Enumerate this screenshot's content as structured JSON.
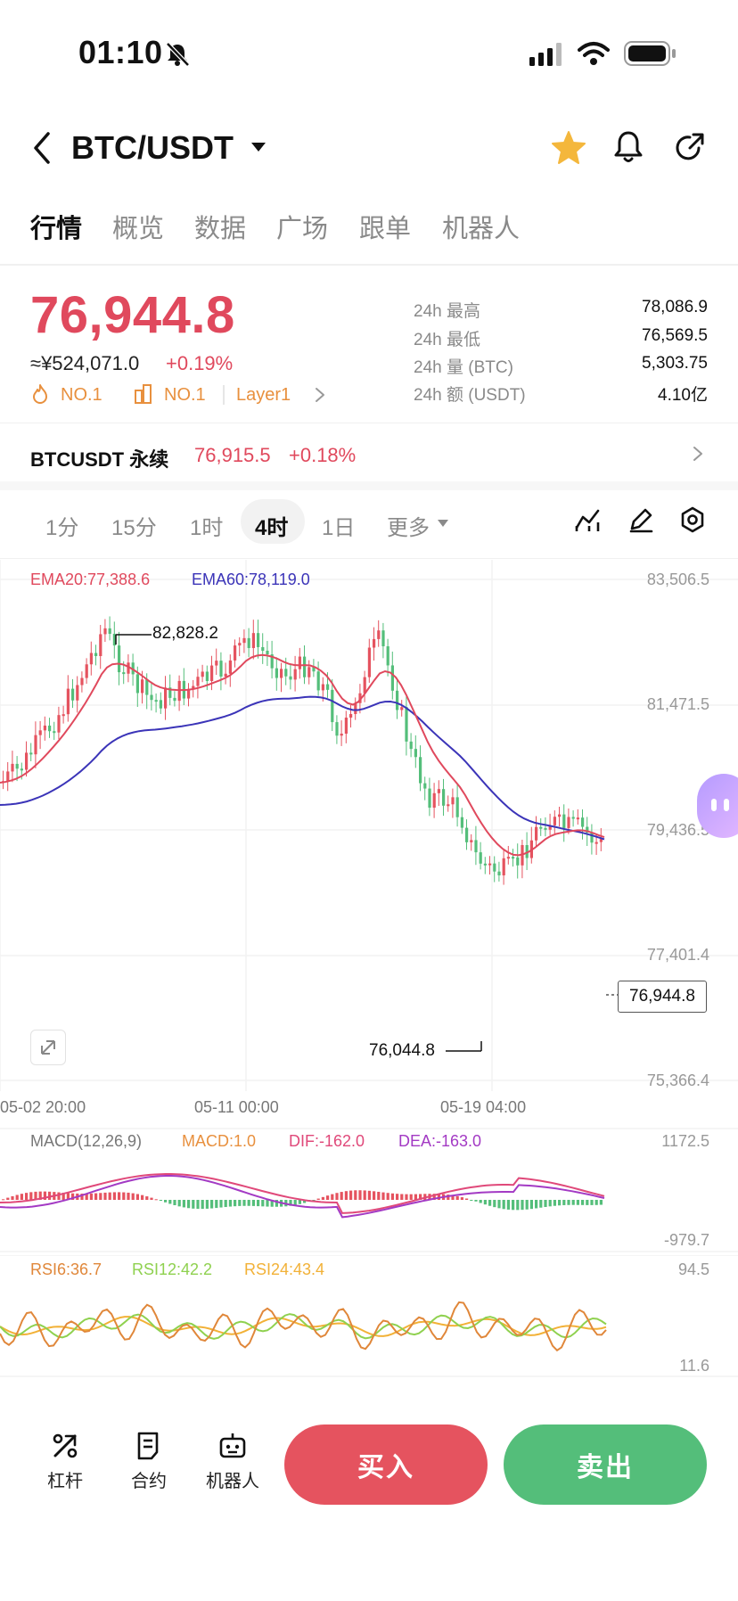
{
  "status_bar": {
    "time": "01:10"
  },
  "header": {
    "pair": "BTC/USDT"
  },
  "tabs": [
    "行情",
    "概览",
    "数据",
    "广场",
    "跟单",
    "机器人"
  ],
  "ticker": {
    "last_price": "76,944.8",
    "cny_price": "≈¥524,071.0",
    "change_pct": "+0.19%",
    "rank_hot": "NO.1",
    "rank_sector": "NO.1",
    "sector": "Layer1"
  },
  "stats": [
    {
      "label": "24h  最高",
      "value": "78,086.9"
    },
    {
      "label": "24h  最低",
      "value": "76,569.5"
    },
    {
      "label": "24h  量 (BTC)",
      "value": "5,303.75"
    },
    {
      "label": "24h  额 (USDT)",
      "value": "4.10亿"
    }
  ],
  "perpetual": {
    "name": "BTCUSDT 永续",
    "price": "76,915.5",
    "change": "+0.18%"
  },
  "intervals": [
    "1分",
    "15分",
    "1时",
    "4时",
    "1日",
    "更多"
  ],
  "chart": {
    "ema20": "EMA20:77,388.6",
    "ema60": "EMA60:78,119.0",
    "y_ticks": [
      "83,506.5",
      "81,471.5",
      "79,436.5",
      "77,401.4",
      "75,366.4"
    ],
    "x_ticks": [
      "05-02 20:00",
      "05-11 00:00",
      "05-19 04:00"
    ],
    "high_mark": "82,828.2",
    "low_mark": "76,044.8",
    "current_price_tag": "76,944.8",
    "colors": {
      "up": "#e5535f",
      "down": "#54be7a",
      "ema20": "#e0495d",
      "ema60": "#3b34b8"
    }
  },
  "macd": {
    "title": "MACD(12,26,9)",
    "macd": "MACD:1.0",
    "dif": "DIF:-162.0",
    "dea": "DEA:-163.0",
    "y_top": "1172.5",
    "y_bottom": "-979.7"
  },
  "rsi": {
    "rsi6": "RSI6:36.7",
    "rsi12": "RSI12:42.2",
    "rsi24": "RSI24:43.4",
    "y_top": "94.5",
    "y_bottom": "11.6"
  },
  "bottom_bar": {
    "tools": [
      "杠杆",
      "合约",
      "机器人"
    ],
    "buy": "买入",
    "sell": "卖出"
  }
}
